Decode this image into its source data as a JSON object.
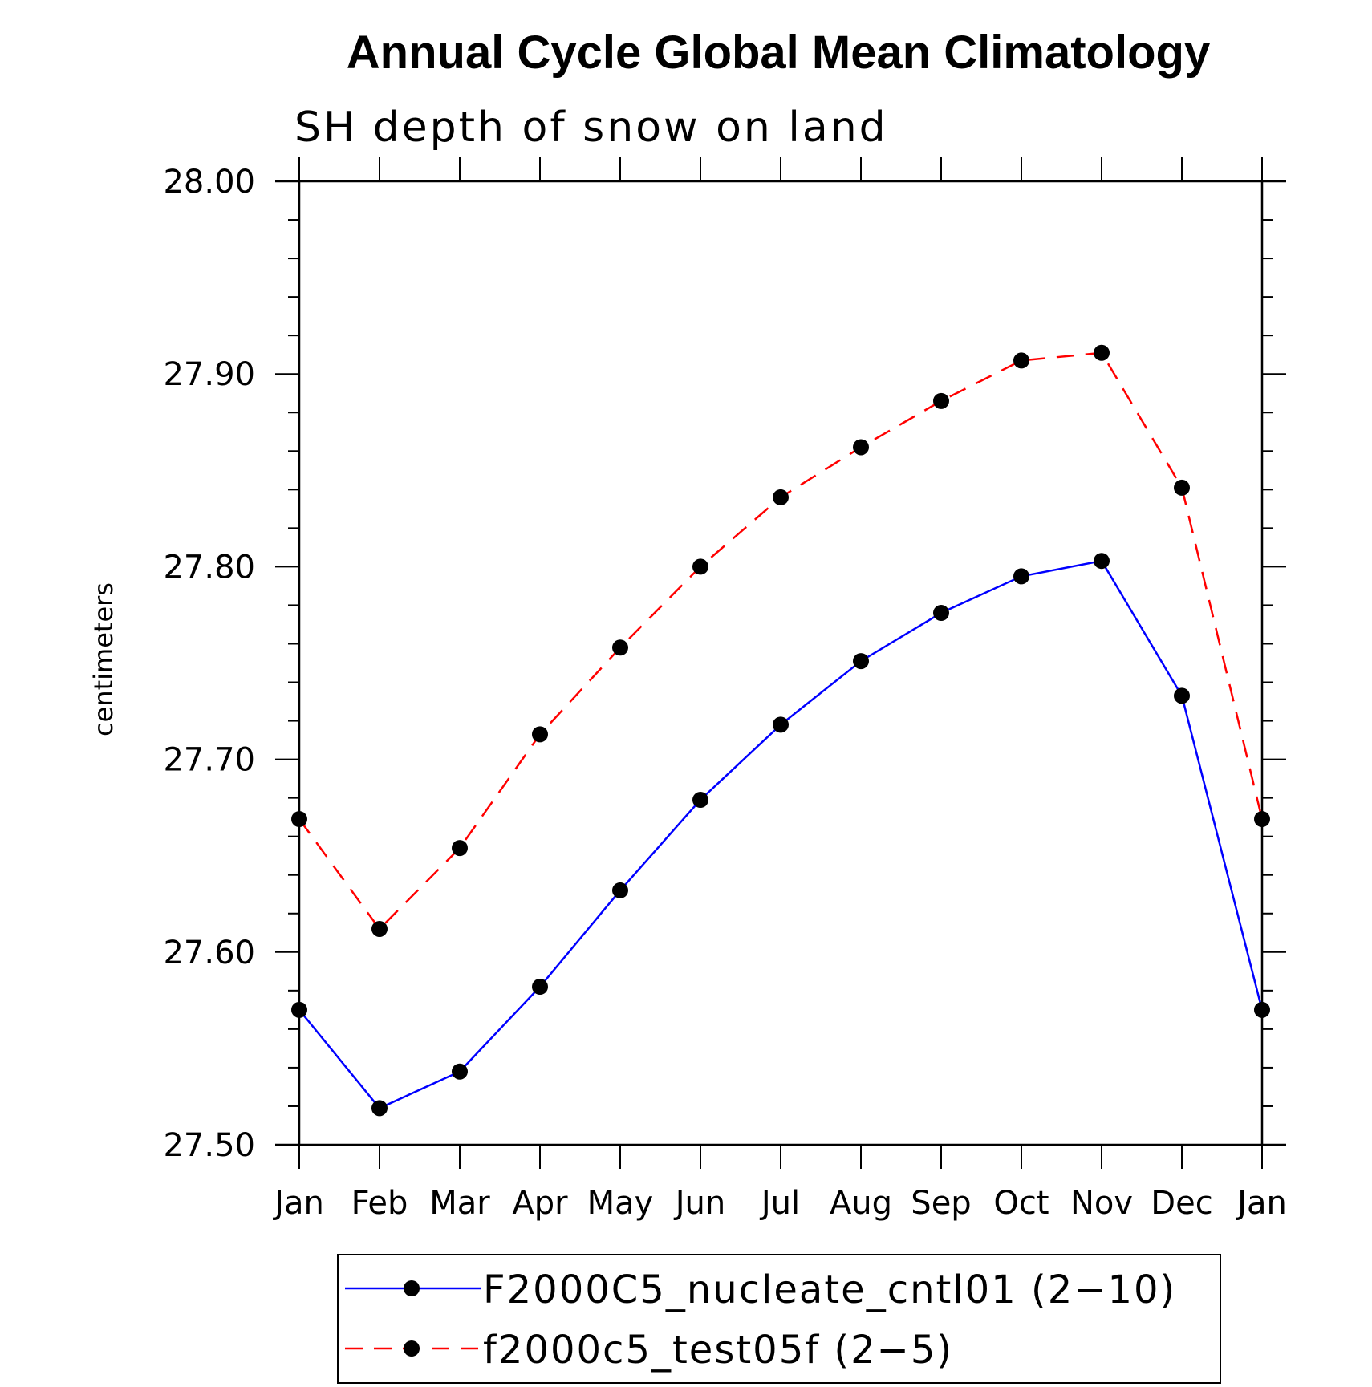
{
  "chart_data": {
    "type": "line",
    "title": "Annual Cycle Global Mean Climatology",
    "subtitle": "SH depth of snow on land",
    "ylabel": "centimeters",
    "xlabel": "",
    "categories": [
      "Jan",
      "Feb",
      "Mar",
      "Apr",
      "May",
      "Jun",
      "Jul",
      "Aug",
      "Sep",
      "Oct",
      "Nov",
      "Dec",
      "Jan"
    ],
    "ylim": [
      27.5,
      28.0
    ],
    "yticks": [
      "27.50",
      "27.60",
      "27.70",
      "27.80",
      "27.90",
      "28.00"
    ],
    "yminor_step": 0.02,
    "grid": false,
    "legend_position": "bottom",
    "series": [
      {
        "name": "F2000C5_nucleate_cntl01 (2−10)",
        "color": "#0000ff",
        "style": "solid",
        "values": [
          27.57,
          27.519,
          27.538,
          27.582,
          27.632,
          27.679,
          27.718,
          27.751,
          27.776,
          27.795,
          27.803,
          27.733,
          27.57
        ]
      },
      {
        "name": "f2000c5_test05f (2−5)",
        "color": "#ff0000",
        "style": "dashed",
        "values": [
          27.669,
          27.612,
          27.654,
          27.713,
          27.758,
          27.8,
          27.836,
          27.862,
          27.886,
          27.907,
          27.911,
          27.841,
          27.669
        ]
      }
    ]
  }
}
